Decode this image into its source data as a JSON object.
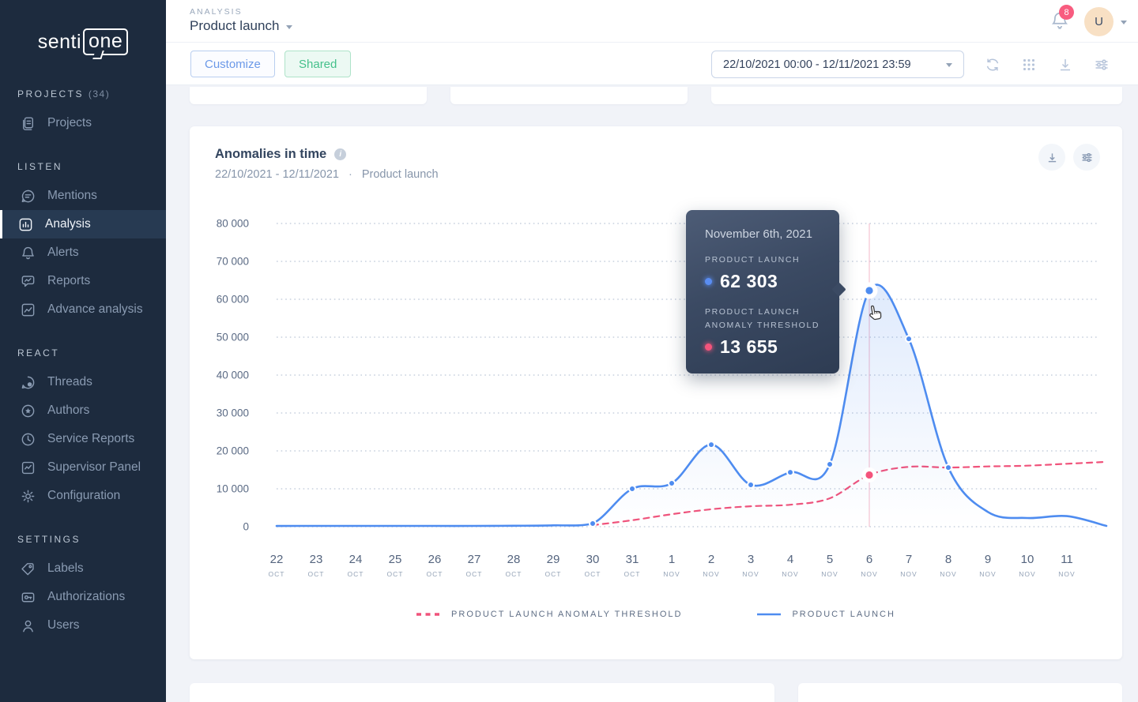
{
  "brand": {
    "logo_prefix": "senti",
    "logo_suffix": "one"
  },
  "sidebar": {
    "sections": [
      {
        "label": "PROJECTS",
        "count": "(34)",
        "items": [
          {
            "label": "Projects",
            "icon": "projects-icon",
            "active": false
          }
        ]
      },
      {
        "label": "LISTEN",
        "count": "",
        "items": [
          {
            "label": "Mentions",
            "icon": "mentions-icon",
            "active": false
          },
          {
            "label": "Analysis",
            "icon": "analysis-icon",
            "active": true
          },
          {
            "label": "Alerts",
            "icon": "alerts-icon",
            "active": false
          },
          {
            "label": "Reports",
            "icon": "reports-icon",
            "active": false
          },
          {
            "label": "Advance analysis",
            "icon": "advance-analysis-icon",
            "active": false
          }
        ]
      },
      {
        "label": "REACT",
        "count": "",
        "items": [
          {
            "label": "Threads",
            "icon": "threads-icon",
            "active": false
          },
          {
            "label": "Authors",
            "icon": "authors-icon",
            "active": false
          },
          {
            "label": "Service Reports",
            "icon": "service-reports-icon",
            "active": false
          },
          {
            "label": "Supervisor Panel",
            "icon": "supervisor-panel-icon",
            "active": false
          },
          {
            "label": "Configuration",
            "icon": "configuration-icon",
            "active": false
          }
        ]
      },
      {
        "label": "SETTINGS",
        "count": "",
        "items": [
          {
            "label": "Labels",
            "icon": "labels-icon",
            "active": false
          },
          {
            "label": "Authorizations",
            "icon": "authorizations-icon",
            "active": false
          },
          {
            "label": "Users",
            "icon": "users-icon",
            "active": false
          }
        ]
      }
    ]
  },
  "header": {
    "eyebrow": "ANALYSIS",
    "title": "Product launch",
    "notification_count": "8",
    "avatar_initial": "U"
  },
  "toolbar": {
    "customize_label": "Customize",
    "shared_label": "Shared",
    "date_range": "22/10/2021 00:00 - 12/11/2021 23:59"
  },
  "chart_card": {
    "title": "Anomalies in time",
    "subtitle_range": "22/10/2021 - 12/11/2021",
    "subtitle_separator": "·",
    "subtitle_project": "Product launch",
    "tooltip": {
      "date": "November 6th, 2021",
      "series1_label": "PRODUCT LAUNCH",
      "series1_value": "62 303",
      "series2_label_line1": "PRODUCT LAUNCH",
      "series2_label_line2": "ANOMALY THRESHOLD",
      "series2_value": "13 655"
    }
  },
  "chart_data": {
    "type": "line",
    "title": "Anomalies in time",
    "ylim": [
      0,
      80000
    ],
    "y_ticks": [
      "80 000",
      "70 000",
      "60 000",
      "50 000",
      "40 000",
      "30 000",
      "20 000",
      "10 000",
      "0"
    ],
    "grid": "dotted-horizontal",
    "legend_position": "bottom",
    "x_labels": [
      {
        "day": "22",
        "month": "OCT"
      },
      {
        "day": "23",
        "month": "OCT"
      },
      {
        "day": "24",
        "month": "OCT"
      },
      {
        "day": "25",
        "month": "OCT"
      },
      {
        "day": "26",
        "month": "OCT"
      },
      {
        "day": "27",
        "month": "OCT"
      },
      {
        "day": "28",
        "month": "OCT"
      },
      {
        "day": "29",
        "month": "OCT"
      },
      {
        "day": "30",
        "month": "OCT"
      },
      {
        "day": "31",
        "month": "OCT"
      },
      {
        "day": "1",
        "month": "NOV"
      },
      {
        "day": "2",
        "month": "NOV"
      },
      {
        "day": "3",
        "month": "NOV"
      },
      {
        "day": "4",
        "month": "NOV"
      },
      {
        "day": "5",
        "month": "NOV"
      },
      {
        "day": "6",
        "month": "NOV"
      },
      {
        "day": "7",
        "month": "NOV"
      },
      {
        "day": "8",
        "month": "NOV"
      },
      {
        "day": "9",
        "month": "NOV"
      },
      {
        "day": "10",
        "month": "NOV"
      },
      {
        "day": "11",
        "month": "NOV"
      }
    ],
    "series": [
      {
        "name": "PRODUCT LAUNCH",
        "color": "#4e8cf0",
        "style": "solid",
        "area_fill": true,
        "values": [
          200,
          200,
          200,
          200,
          200,
          200,
          250,
          350,
          830,
          10000,
          11450,
          21650,
          11050,
          14350,
          16450,
          62303,
          49550,
          15600,
          3900,
          2300,
          2800,
          200
        ],
        "marker_indices": [
          8,
          9,
          10,
          11,
          12,
          13,
          14,
          15,
          16,
          17
        ],
        "highlight_index": 15
      },
      {
        "name": "PRODUCT LAUNCH ANOMALY THRESHOLD",
        "color": "#f0537b",
        "style": "dashed",
        "area_fill": false,
        "values": [
          null,
          null,
          null,
          null,
          null,
          null,
          null,
          null,
          400,
          1700,
          3300,
          4600,
          5400,
          5800,
          7500,
          13655,
          15800,
          15600,
          15900,
          16100,
          16600,
          17100
        ],
        "marker_indices": [
          15
        ],
        "highlight_index": 15
      }
    ],
    "highlight": {
      "x_index": 15,
      "date": "November 6th, 2021",
      "product_launch": 62303,
      "anomaly_threshold": 13655
    },
    "legend": [
      {
        "label": "PRODUCT LAUNCH ANOMALY THRESHOLD",
        "swatch": "dashed",
        "color": "#f0537b"
      },
      {
        "label": "PRODUCT LAUNCH",
        "swatch": "solid",
        "color": "#4e8cf0"
      }
    ]
  },
  "colors": {
    "accent_blue": "#4e8cf0",
    "accent_pink": "#f0537b",
    "badge_pink": "#f85c7f",
    "shared_green": "#45c08b",
    "customize_blue": "#6b99e8",
    "sidebar_bg": "#1d2b3e"
  }
}
